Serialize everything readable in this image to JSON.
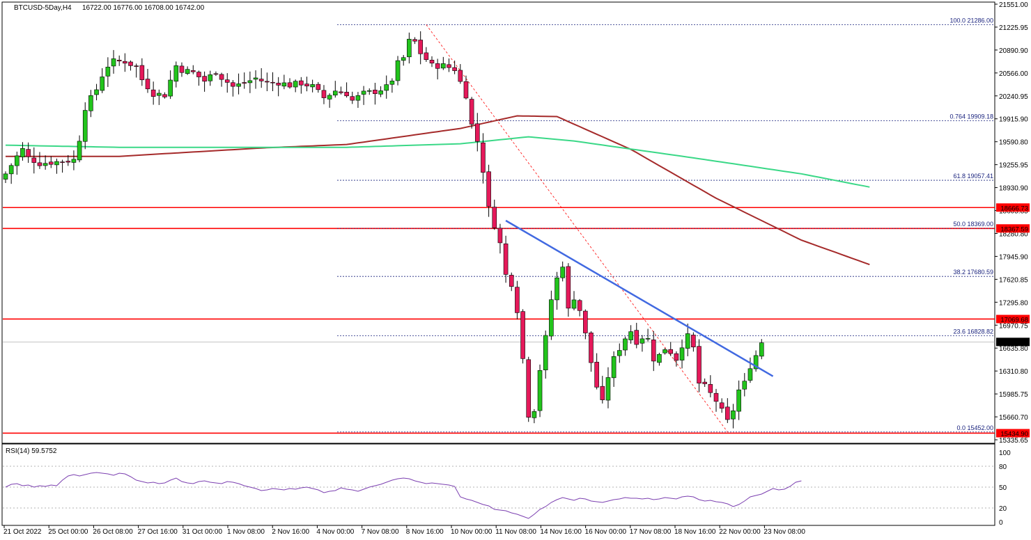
{
  "header": {
    "symbol": "BTCUSD-5Day,H4",
    "ohlc": "16722.00 16776.00 16708.00 16742.00"
  },
  "rsi_panel": {
    "title": "RSI(14) 59.5752"
  },
  "colors": {
    "bull": "#22c41c",
    "bear": "#e5195a",
    "ma_red": "#a52a2a",
    "ma_green": "#3ad887",
    "levels": "#ff0000",
    "trendline": "#4169e1",
    "fib": "#1a237e",
    "rsi": "#7b3fb0"
  },
  "chart_data": [
    {
      "type": "candlestick",
      "title": "BTCUSD-5Day,H4",
      "y_ticks": [
        "21551.00",
        "21225.95",
        "20890.90",
        "20566.00",
        "20240.95",
        "19915.90",
        "19590.80",
        "19255.95",
        "18930.90",
        "18605.85",
        "18280.80",
        "17945.90",
        "17620.85",
        "17295.80",
        "16970.75",
        "16635.80",
        "16310.80",
        "15985.75",
        "15660.70",
        "15335.65"
      ],
      "ylim": [
        15300,
        21600
      ],
      "x_labels": [
        "21 Oct 2022",
        "25 Oct 00:00",
        "26 Oct 08:00",
        "27 Oct 16:00",
        "31 Oct 00:00",
        "1 Nov 08:00",
        "2 Nov 16:00",
        "4 Nov 00:00",
        "7 Nov 08:00",
        "8 Nov 16:00",
        "10 Nov 00:00",
        "11 Nov 08:00",
        "14 Nov 16:00",
        "16 Nov 00:00",
        "17 Nov 08:00",
        "18 Nov 16:00",
        "22 Nov 00:00",
        "23 Nov 08:00"
      ],
      "candle_count": 134,
      "close_points": [
        [
          0,
          19150
        ],
        [
          2,
          19400
        ],
        [
          3,
          19500
        ],
        [
          4,
          19380
        ],
        [
          6,
          19300
        ],
        [
          10,
          19330
        ],
        [
          12,
          19350
        ],
        [
          13,
          19650
        ],
        [
          14,
          20100
        ],
        [
          15,
          20230
        ],
        [
          16,
          20360
        ],
        [
          17,
          20560
        ],
        [
          18,
          20700
        ],
        [
          19,
          20760
        ],
        [
          21,
          20760
        ],
        [
          23,
          20680
        ],
        [
          24,
          20500
        ],
        [
          26,
          20300
        ],
        [
          28,
          20280
        ],
        [
          30,
          20700
        ],
        [
          31,
          20640
        ],
        [
          33,
          20600
        ],
        [
          35,
          20480
        ],
        [
          37,
          20620
        ],
        [
          38,
          20530
        ],
        [
          40,
          20400
        ],
        [
          42,
          20450
        ],
        [
          44,
          20520
        ],
        [
          46,
          20450
        ],
        [
          48,
          20460
        ],
        [
          50,
          20420
        ],
        [
          52,
          20450
        ],
        [
          54,
          20400
        ],
        [
          56,
          20240
        ],
        [
          58,
          20340
        ],
        [
          60,
          20300
        ],
        [
          61,
          20200
        ],
        [
          63,
          20300
        ],
        [
          65,
          20330
        ],
        [
          67,
          20390
        ],
        [
          68,
          20500
        ],
        [
          69,
          20730
        ],
        [
          70,
          20810
        ],
        [
          71,
          21050
        ],
        [
          72,
          21040
        ],
        [
          73,
          20880
        ],
        [
          75,
          20700
        ],
        [
          77,
          20700
        ],
        [
          79,
          20650
        ],
        [
          81,
          20280
        ],
        [
          82,
          19850
        ],
        [
          83,
          19620
        ],
        [
          84,
          19200
        ],
        [
          85,
          18650
        ],
        [
          86,
          18420
        ],
        [
          87,
          18150
        ],
        [
          88,
          17700
        ],
        [
          89,
          17580
        ],
        [
          90,
          17200
        ],
        [
          91,
          16500
        ],
        [
          92,
          15700
        ],
        [
          93,
          15780
        ],
        [
          94,
          16350
        ],
        [
          95,
          16800
        ],
        [
          96,
          17350
        ],
        [
          97,
          17650
        ],
        [
          98,
          17850
        ],
        [
          99,
          17200
        ],
        [
          100,
          17380
        ],
        [
          101,
          17200
        ],
        [
          102,
          16850
        ],
        [
          103,
          16450
        ],
        [
          104,
          16100
        ],
        [
          105,
          15870
        ],
        [
          106,
          16250
        ],
        [
          107,
          16500
        ],
        [
          108,
          16650
        ],
        [
          109,
          16800
        ],
        [
          110,
          16900
        ],
        [
          111,
          16750
        ],
        [
          112,
          16810
        ],
        [
          113,
          16780
        ],
        [
          114,
          16500
        ],
        [
          115,
          16550
        ],
        [
          116,
          16650
        ],
        [
          117,
          16600
        ],
        [
          118,
          16500
        ],
        [
          119,
          16700
        ],
        [
          120,
          16820
        ],
        [
          121,
          16650
        ],
        [
          122,
          16150
        ],
        [
          123,
          16100
        ],
        [
          124,
          16000
        ],
        [
          125,
          15900
        ],
        [
          126,
          15750
        ],
        [
          127,
          15600
        ],
        [
          128,
          15770
        ],
        [
          129,
          16050
        ],
        [
          130,
          16150
        ],
        [
          131,
          16400
        ],
        [
          132,
          16550
        ],
        [
          133,
          16742
        ]
      ],
      "moving_averages": [
        {
          "color_key": "ma_red",
          "points": [
            [
              0,
              19400
            ],
            [
              20,
              19400
            ],
            [
              45,
              19520
            ],
            [
              60,
              19570
            ],
            [
              80,
              19800
            ],
            [
              90,
              19980
            ],
            [
              97,
              19970
            ],
            [
              110,
              19500
            ],
            [
              125,
              18800
            ],
            [
              140,
              18200
            ],
            [
              152,
              17850
            ]
          ]
        },
        {
          "color_key": "ma_green",
          "points": [
            [
              0,
              19560
            ],
            [
              20,
              19530
            ],
            [
              40,
              19530
            ],
            [
              60,
              19530
            ],
            [
              80,
              19580
            ],
            [
              92,
              19680
            ],
            [
              100,
              19620
            ],
            [
              120,
              19390
            ],
            [
              140,
              19150
            ],
            [
              152,
              18960
            ]
          ]
        }
      ],
      "horizontal_levels": [
        {
          "label": "18666.73",
          "value": 18666.73
        },
        {
          "label": "18367.59",
          "value": 18367.59
        },
        {
          "label": "17069.68",
          "value": 17069.68
        },
        {
          "label": "15434.90",
          "value": 15434.9
        }
      ],
      "current_price": {
        "label": "16742.00",
        "value": 16742.0
      },
      "fibonacci": [
        {
          "label": "100.0 21286.00",
          "value": 21286.0
        },
        {
          "label": "0.764 19909.18",
          "value": 19909.18
        },
        {
          "label": "61.8 19057.41",
          "value": 19057.41
        },
        {
          "label": "50.0 18369.00",
          "value": 18369.0
        },
        {
          "label": "38.2 17680.59",
          "value": 17680.59
        },
        {
          "label": "23.6 16828.82",
          "value": 16828.82
        },
        {
          "label": "0.0 15452.00",
          "value": 15452.0
        }
      ],
      "trendline": [
        [
          88,
          18480
        ],
        [
          135,
          16250
        ]
      ],
      "fib_diagonal": [
        [
          74,
          21286
        ],
        [
          127,
          15452
        ]
      ]
    },
    {
      "type": "line",
      "title": "RSI(14) 59.5752",
      "ylim": [
        0,
        100
      ],
      "y_ticks": [
        "100",
        "80",
        "50",
        "20",
        "0"
      ],
      "values": [
        50,
        54,
        55,
        52,
        53,
        50,
        52,
        51,
        53,
        52,
        60,
        66,
        68,
        66,
        68,
        70,
        71,
        70,
        69,
        67,
        70,
        69,
        65,
        60,
        58,
        56,
        57,
        55,
        56,
        60,
        63,
        58,
        56,
        55,
        58,
        59,
        57,
        56,
        55,
        58,
        57,
        55,
        52,
        50,
        48,
        45,
        46,
        48,
        47,
        46,
        48,
        47,
        49,
        50,
        48,
        46,
        42,
        44,
        45,
        49,
        47,
        46,
        44,
        47,
        50,
        52,
        54,
        57,
        60,
        62,
        63,
        62,
        59,
        57,
        55,
        56,
        55,
        54,
        53,
        51,
        36,
        33,
        31,
        28,
        25,
        23,
        18,
        17,
        16,
        13,
        11,
        8,
        5,
        11,
        18,
        22,
        28,
        32,
        35,
        33,
        31,
        34,
        33,
        30,
        29,
        28,
        30,
        32,
        33,
        35,
        34,
        34,
        33,
        34,
        32,
        33,
        35,
        34,
        33,
        36,
        37,
        36,
        32,
        30,
        31,
        29,
        28,
        26,
        22,
        25,
        30,
        36,
        38,
        40,
        44,
        48,
        46,
        47,
        51,
        57,
        59
      ]
    }
  ]
}
